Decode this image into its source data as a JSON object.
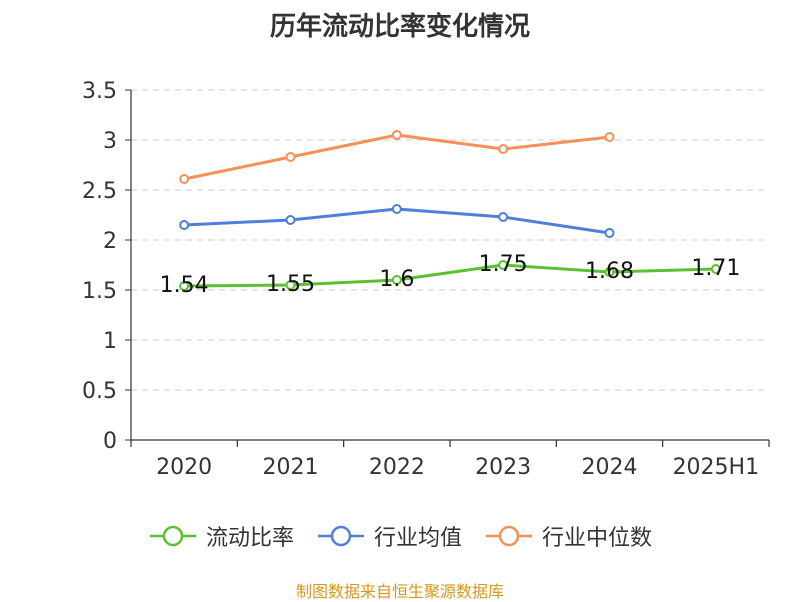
{
  "title": "历年流动比率变化情况",
  "source_text": "制图数据来自恒生聚源数据库",
  "colors": {
    "source": "#d49a1c",
    "axis": "#333333",
    "grid": "#cccccc"
  },
  "legend": [
    {
      "label": "流动比率",
      "color": "#5cc130"
    },
    {
      "label": "行业均值",
      "color": "#4f7fd9"
    },
    {
      "label": "行业中位数",
      "color": "#f79058"
    }
  ],
  "chart_data": {
    "type": "line",
    "title": "历年流动比率变化情况",
    "categories": [
      "2020",
      "2021",
      "2022",
      "2023",
      "2024",
      "2025H1"
    ],
    "ylim": [
      0,
      3.5
    ],
    "yticks": [
      "0",
      "0.5",
      "1",
      "1.5",
      "2",
      "2.5",
      "3",
      "3.5"
    ],
    "grid": true,
    "legend_position": "bottom",
    "series": [
      {
        "name": "流动比率",
        "color": "#5cc130",
        "values": [
          1.54,
          1.55,
          1.6,
          1.75,
          1.68,
          1.71
        ],
        "labels": [
          "1.54",
          "1.55",
          "1.6",
          "1.75",
          "1.68",
          "1.71"
        ]
      },
      {
        "name": "行业均值",
        "color": "#4f7fd9",
        "values": [
          2.15,
          2.2,
          2.31,
          2.23,
          2.07,
          null
        ]
      },
      {
        "name": "行业中位数",
        "color": "#f79058",
        "values": [
          2.61,
          2.83,
          3.05,
          2.91,
          3.03,
          null
        ]
      }
    ]
  }
}
